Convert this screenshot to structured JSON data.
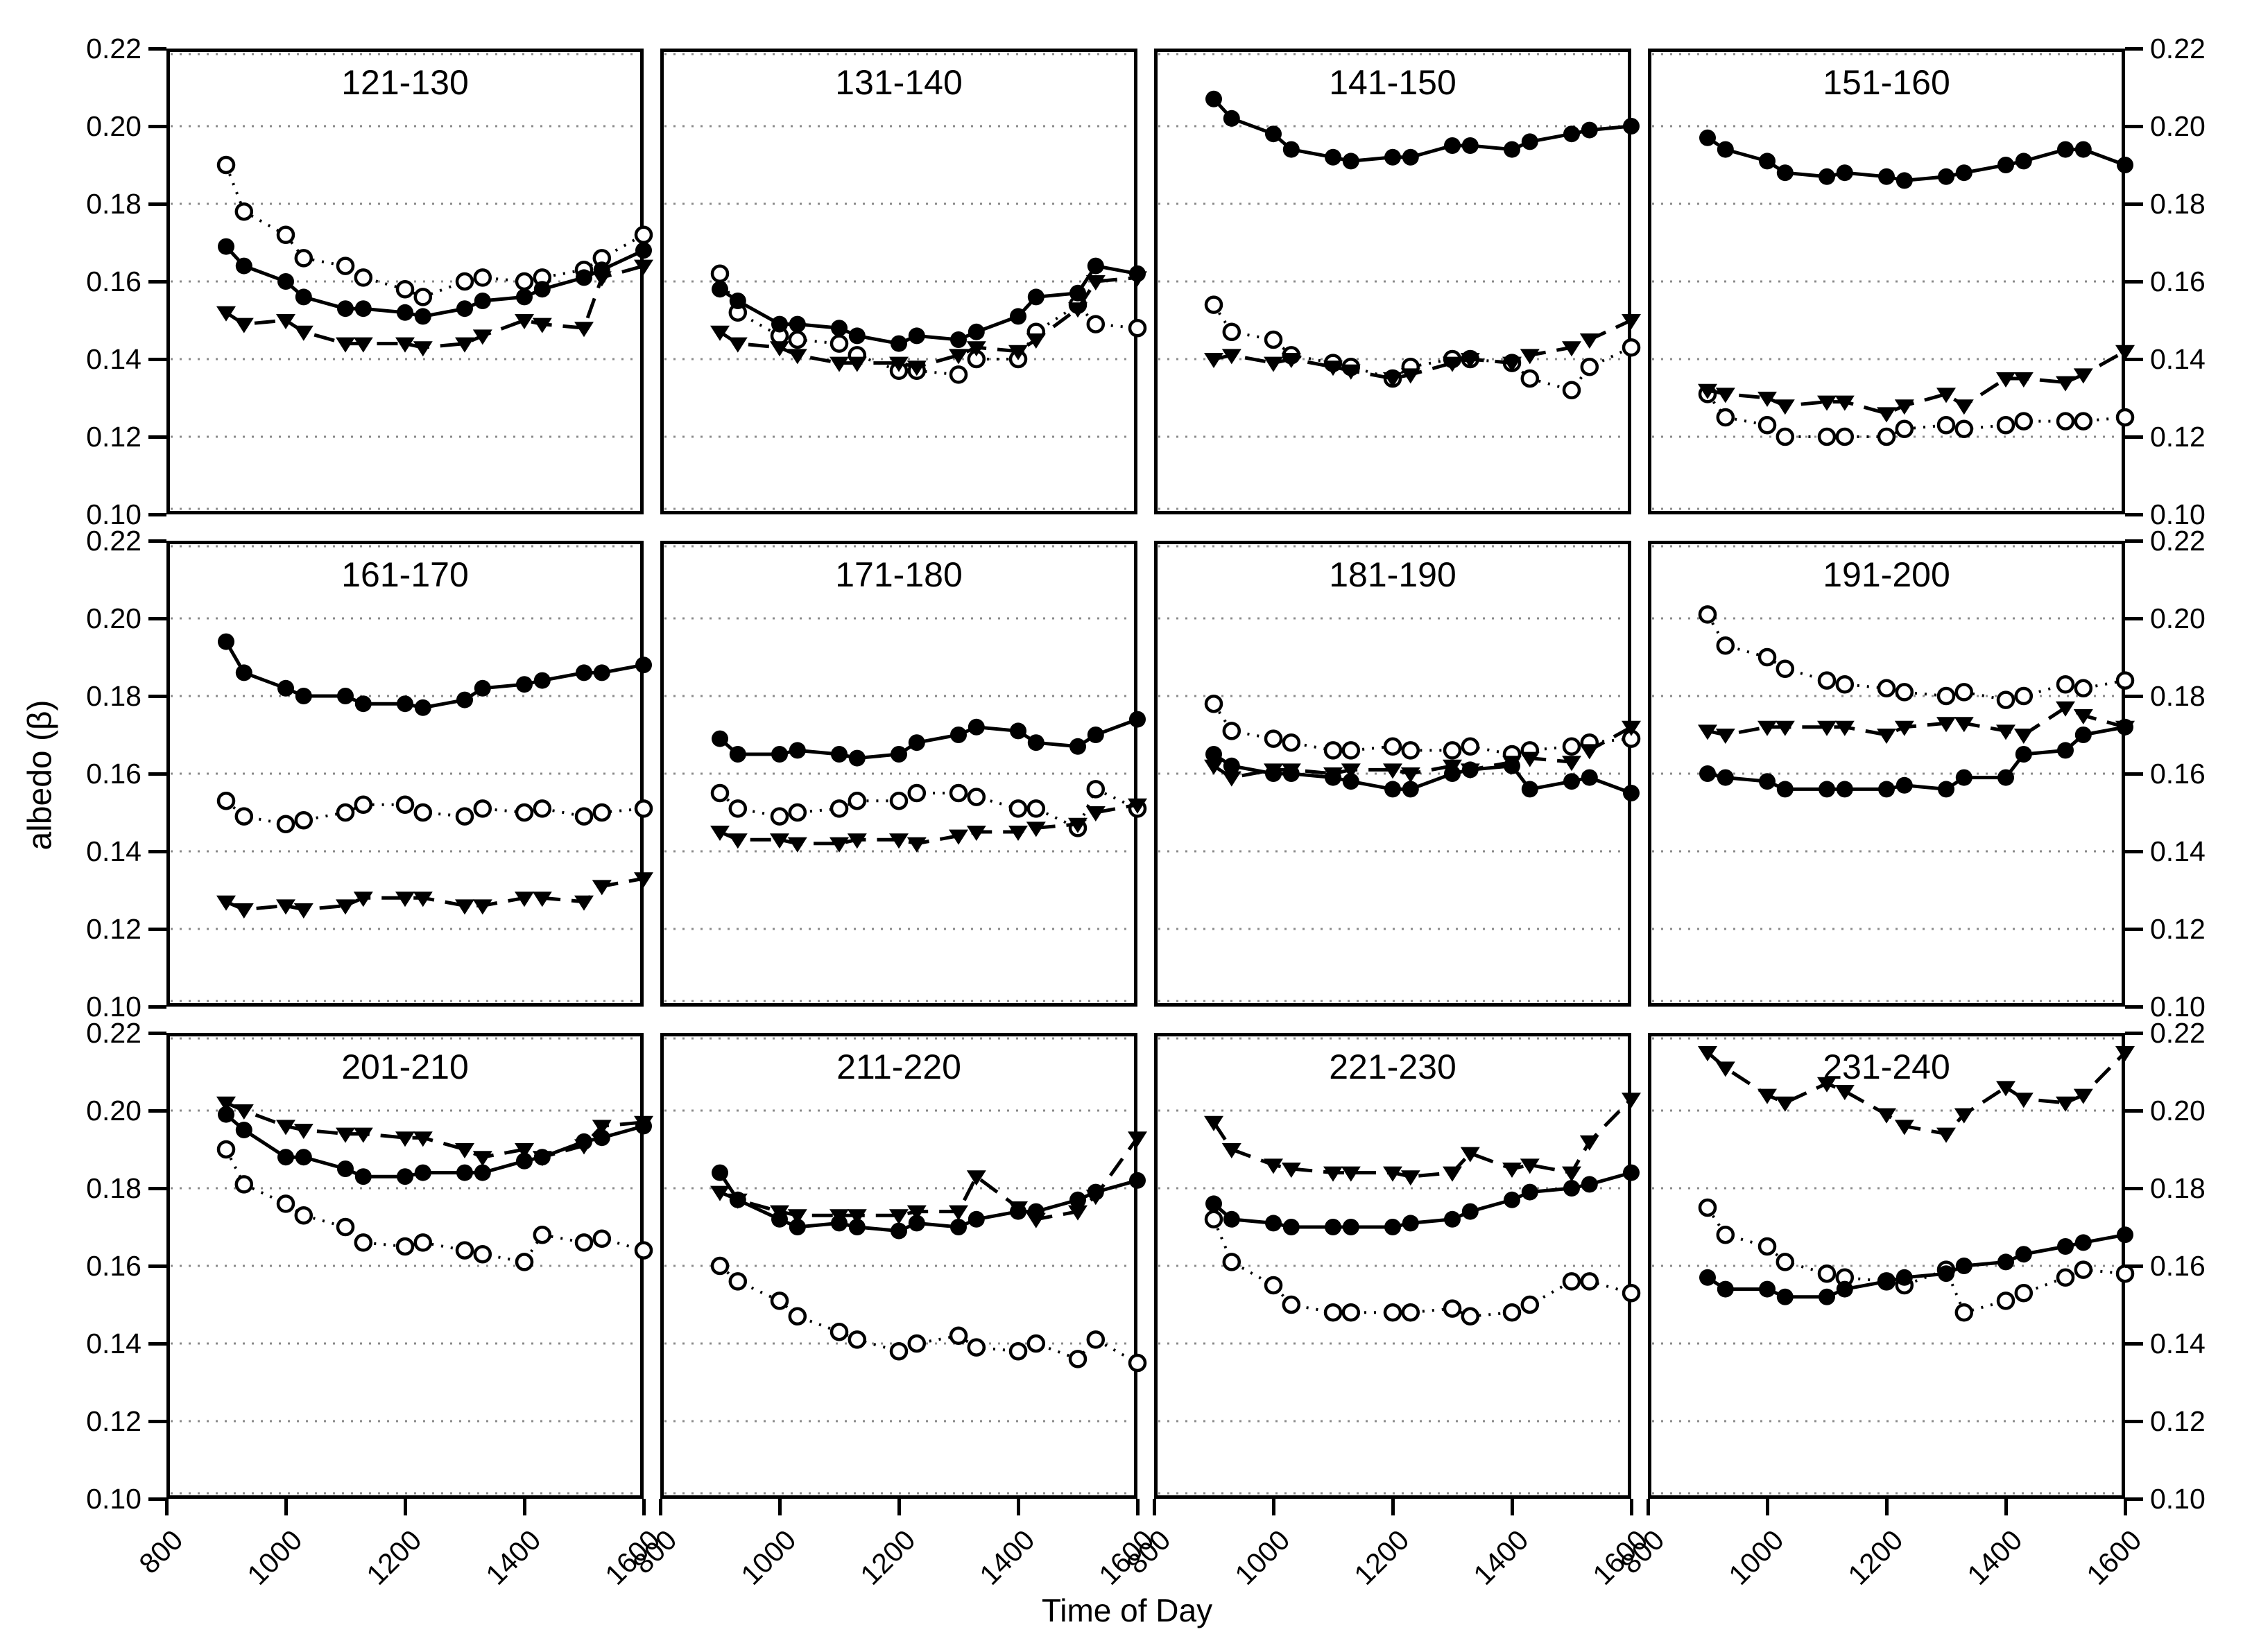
{
  "figure": {
    "xlabel": "Time of Day",
    "ylabel": "albedo (β)",
    "line_color": "#000000",
    "grid_color": "#8a8a8a",
    "background": "#ffffff"
  },
  "chart_data": {
    "type": "line",
    "layout": {
      "rows": 3,
      "cols": 4,
      "legend": "none",
      "grid": "horizontal-dotted"
    },
    "xlim": [
      800,
      1600
    ],
    "ylim": [
      0.1,
      0.22
    ],
    "x_ticks": [
      800,
      1000,
      1200,
      1400,
      1600
    ],
    "x_tick_labels": [
      "800",
      "1000",
      "1200",
      "1400",
      "1600"
    ],
    "y_ticks": [
      0.22,
      0.2,
      0.18,
      0.16,
      0.14,
      0.12,
      0.1
    ],
    "y_tick_labels": [
      "0.22",
      "0.20",
      "0.18",
      "0.16",
      "0.14",
      "0.12",
      "0.10"
    ],
    "x": [
      900,
      930,
      1000,
      1030,
      1100,
      1130,
      1200,
      1230,
      1300,
      1330,
      1400,
      1430,
      1500,
      1530,
      1600
    ],
    "series_styles": [
      {
        "key": "open_circle",
        "marker": "open-circle",
        "line": "dotted"
      },
      {
        "key": "filled_triangle",
        "marker": "filled-triangle-down",
        "line": "dashed"
      },
      {
        "key": "filled_circle",
        "marker": "filled-circle",
        "line": "solid"
      }
    ],
    "panels": [
      {
        "title": "121-130",
        "series": {
          "filled_circle": [
            0.169,
            0.164,
            0.16,
            0.156,
            0.153,
            0.153,
            0.152,
            0.151,
            0.153,
            0.155,
            0.156,
            0.158,
            0.161,
            0.163,
            0.168
          ],
          "open_circle": [
            0.19,
            0.178,
            0.172,
            0.166,
            0.164,
            0.161,
            0.158,
            0.156,
            0.16,
            0.161,
            0.16,
            0.161,
            0.163,
            0.166,
            0.172
          ],
          "filled_triangle": [
            0.152,
            0.149,
            0.15,
            0.147,
            0.144,
            0.144,
            0.144,
            0.143,
            0.144,
            0.146,
            0.15,
            0.149,
            0.148,
            0.161,
            0.164
          ]
        }
      },
      {
        "title": "131-140",
        "series": {
          "filled_circle": [
            0.158,
            0.155,
            0.149,
            0.149,
            0.148,
            0.146,
            0.144,
            0.146,
            0.145,
            0.147,
            0.151,
            0.156,
            0.157,
            0.164,
            0.162
          ],
          "open_circle": [
            0.162,
            0.152,
            0.146,
            0.145,
            0.144,
            0.141,
            0.137,
            0.137,
            0.136,
            0.14,
            0.14,
            0.147,
            0.154,
            0.149,
            0.148
          ],
          "filled_triangle": [
            0.147,
            0.144,
            0.143,
            0.141,
            0.139,
            0.139,
            0.139,
            0.138,
            0.141,
            0.143,
            0.142,
            0.145,
            0.153,
            0.16,
            0.161
          ]
        }
      },
      {
        "title": "141-150",
        "series": {
          "filled_circle": [
            0.207,
            0.202,
            0.198,
            0.194,
            0.192,
            0.191,
            0.192,
            0.192,
            0.195,
            0.195,
            0.194,
            0.196,
            0.198,
            0.199,
            0.2
          ],
          "open_circle": [
            0.154,
            0.147,
            0.145,
            0.141,
            0.139,
            0.138,
            0.135,
            0.138,
            0.14,
            0.14,
            0.139,
            0.135,
            0.132,
            0.138,
            0.143
          ],
          "filled_triangle": [
            0.14,
            0.141,
            0.139,
            0.14,
            0.138,
            0.137,
            0.135,
            0.136,
            0.139,
            0.14,
            0.139,
            0.141,
            0.143,
            0.145,
            0.15
          ]
        }
      },
      {
        "title": "151-160",
        "series": {
          "filled_circle": [
            0.197,
            0.194,
            0.191,
            0.188,
            0.187,
            0.188,
            0.187,
            0.186,
            0.187,
            0.188,
            0.19,
            0.191,
            0.194,
            0.194,
            0.19
          ],
          "open_circle": [
            0.131,
            0.125,
            0.123,
            0.12,
            0.12,
            0.12,
            0.12,
            0.122,
            0.123,
            0.122,
            0.123,
            0.124,
            0.124,
            0.124,
            0.125
          ],
          "filled_triangle": [
            0.132,
            0.131,
            0.13,
            0.128,
            0.129,
            0.129,
            0.126,
            0.128,
            0.131,
            0.128,
            0.135,
            0.135,
            0.134,
            0.136,
            0.142
          ]
        }
      },
      {
        "title": "161-170",
        "series": {
          "filled_circle": [
            0.194,
            0.186,
            0.182,
            0.18,
            0.18,
            0.178,
            0.178,
            0.177,
            0.179,
            0.182,
            0.183,
            0.184,
            0.186,
            0.186,
            0.188
          ],
          "open_circle": [
            0.153,
            0.149,
            0.147,
            0.148,
            0.15,
            0.152,
            0.152,
            0.15,
            0.149,
            0.151,
            0.15,
            0.151,
            0.149,
            0.15,
            0.151
          ],
          "filled_triangle": [
            0.127,
            0.125,
            0.126,
            0.125,
            0.126,
            0.128,
            0.128,
            0.128,
            0.126,
            0.126,
            0.128,
            0.128,
            0.127,
            0.131,
            0.133
          ]
        }
      },
      {
        "title": "171-180",
        "series": {
          "filled_circle": [
            0.169,
            0.165,
            0.165,
            0.166,
            0.165,
            0.164,
            0.165,
            0.168,
            0.17,
            0.172,
            0.171,
            0.168,
            0.167,
            0.17,
            0.174
          ],
          "open_circle": [
            0.155,
            0.151,
            0.149,
            0.15,
            0.151,
            0.153,
            0.153,
            0.155,
            0.155,
            0.154,
            0.151,
            0.151,
            0.146,
            0.156,
            0.151
          ],
          "filled_triangle": [
            0.145,
            0.143,
            0.143,
            0.142,
            0.142,
            0.143,
            0.143,
            0.142,
            0.144,
            0.145,
            0.145,
            0.146,
            0.147,
            0.15,
            0.152
          ]
        }
      },
      {
        "title": "181-190",
        "series": {
          "filled_circle": [
            0.165,
            0.162,
            0.16,
            0.16,
            0.159,
            0.158,
            0.156,
            0.156,
            0.16,
            0.161,
            0.162,
            0.156,
            0.158,
            0.159,
            0.155
          ],
          "open_circle": [
            0.178,
            0.171,
            0.169,
            0.168,
            0.166,
            0.166,
            0.167,
            0.166,
            0.166,
            0.167,
            0.165,
            0.166,
            0.167,
            0.168,
            0.169
          ],
          "filled_triangle": [
            0.162,
            0.159,
            0.161,
            0.161,
            0.16,
            0.161,
            0.161,
            0.16,
            0.162,
            0.161,
            0.163,
            0.164,
            0.163,
            0.166,
            0.172
          ]
        }
      },
      {
        "title": "191-200",
        "series": {
          "filled_circle": [
            0.16,
            0.159,
            0.158,
            0.156,
            0.156,
            0.156,
            0.156,
            0.157,
            0.156,
            0.159,
            0.159,
            0.165,
            0.166,
            0.17,
            0.172
          ],
          "open_circle": [
            0.201,
            0.193,
            0.19,
            0.187,
            0.184,
            0.183,
            0.182,
            0.181,
            0.18,
            0.181,
            0.179,
            0.18,
            0.183,
            0.182,
            0.184
          ],
          "filled_triangle": [
            0.171,
            0.17,
            0.172,
            0.172,
            0.172,
            0.172,
            0.17,
            0.172,
            0.173,
            0.173,
            0.171,
            0.17,
            0.177,
            0.175,
            0.172
          ]
        }
      },
      {
        "title": "201-210",
        "series": {
          "filled_circle": [
            0.199,
            0.195,
            0.188,
            0.188,
            0.185,
            0.183,
            0.183,
            0.184,
            0.184,
            0.184,
            0.187,
            0.188,
            0.192,
            0.193,
            0.196
          ],
          "open_circle": [
            0.19,
            0.181,
            0.176,
            0.173,
            0.17,
            0.166,
            0.165,
            0.166,
            0.164,
            0.163,
            0.161,
            0.168,
            0.166,
            0.167,
            0.164
          ],
          "filled_triangle": [
            0.202,
            0.2,
            0.196,
            0.195,
            0.194,
            0.194,
            0.193,
            0.193,
            0.19,
            0.188,
            0.19,
            0.188,
            0.191,
            0.196,
            0.197
          ]
        }
      },
      {
        "title": "211-220",
        "series": {
          "filled_circle": [
            0.184,
            0.177,
            0.172,
            0.17,
            0.171,
            0.17,
            0.169,
            0.171,
            0.17,
            0.172,
            0.174,
            0.174,
            0.177,
            0.179,
            0.182
          ],
          "open_circle": [
            0.16,
            0.156,
            0.151,
            0.147,
            0.143,
            0.141,
            0.138,
            0.14,
            0.142,
            0.139,
            0.138,
            0.14,
            0.136,
            0.141,
            0.135
          ],
          "filled_triangle": [
            0.179,
            0.177,
            0.174,
            0.173,
            0.173,
            0.173,
            0.173,
            0.174,
            0.174,
            0.183,
            0.175,
            0.172,
            0.174,
            0.178,
            0.193
          ]
        }
      },
      {
        "title": "221-230",
        "series": {
          "filled_circle": [
            0.176,
            0.172,
            0.171,
            0.17,
            0.17,
            0.17,
            0.17,
            0.171,
            0.172,
            0.174,
            0.177,
            0.179,
            0.18,
            0.181,
            0.184
          ],
          "open_circle": [
            0.172,
            0.161,
            0.155,
            0.15,
            0.148,
            0.148,
            0.148,
            0.148,
            0.149,
            0.147,
            0.148,
            0.15,
            0.156,
            0.156,
            0.153
          ],
          "filled_triangle": [
            0.197,
            0.19,
            0.186,
            0.185,
            0.184,
            0.184,
            0.184,
            0.183,
            0.184,
            0.189,
            0.185,
            0.186,
            0.184,
            0.192,
            0.203
          ]
        }
      },
      {
        "title": "231-240",
        "series": {
          "filled_circle": [
            0.157,
            0.154,
            0.154,
            0.152,
            0.152,
            0.154,
            0.156,
            0.157,
            0.158,
            0.16,
            0.161,
            0.163,
            0.165,
            0.166,
            0.168
          ],
          "open_circle": [
            0.175,
            0.168,
            0.165,
            0.161,
            0.158,
            0.157,
            0.156,
            0.155,
            0.159,
            0.148,
            0.151,
            0.153,
            0.157,
            0.159,
            0.158
          ],
          "filled_triangle": [
            0.215,
            0.211,
            0.204,
            0.202,
            0.207,
            0.205,
            0.199,
            0.196,
            0.194,
            0.199,
            0.206,
            0.203,
            0.202,
            0.204,
            0.215
          ]
        }
      }
    ]
  }
}
